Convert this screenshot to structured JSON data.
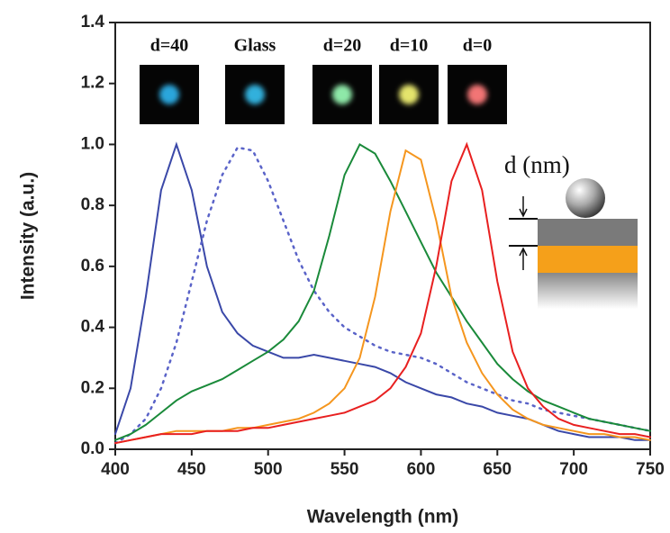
{
  "chart_data": {
    "type": "line",
    "xlabel": "Wavelength (nm)",
    "ylabel": "Intensity (a.u.)",
    "annotation": "d (nm)",
    "xlim": [
      400,
      750
    ],
    "ylim": [
      0,
      1.4
    ],
    "xticks": [
      400,
      450,
      500,
      550,
      600,
      650,
      700,
      750
    ],
    "yticks": [
      {
        "value": 0,
        "label": "0.0"
      },
      0.2,
      0.4,
      0.6,
      0.8,
      {
        "value": 1,
        "label": "1.0"
      },
      1.2,
      1.4
    ],
    "grid": false,
    "x": [
      400,
      410,
      420,
      430,
      440,
      450,
      460,
      470,
      480,
      490,
      500,
      510,
      520,
      530,
      540,
      550,
      560,
      570,
      580,
      590,
      600,
      610,
      620,
      630,
      640,
      650,
      660,
      670,
      680,
      690,
      700,
      710,
      720,
      730,
      740,
      750
    ],
    "series": [
      {
        "name": "d=40",
        "color": "#3a48a8",
        "linestyle": "solid",
        "spot_color": "#2aa6dc",
        "values": [
          0.05,
          0.2,
          0.5,
          0.85,
          1.0,
          0.85,
          0.6,
          0.45,
          0.38,
          0.34,
          0.32,
          0.3,
          0.3,
          0.31,
          0.3,
          0.29,
          0.28,
          0.27,
          0.25,
          0.22,
          0.2,
          0.18,
          0.17,
          0.15,
          0.14,
          0.12,
          0.11,
          0.1,
          0.08,
          0.06,
          0.05,
          0.04,
          0.04,
          0.04,
          0.03,
          0.03
        ]
      },
      {
        "name": "Glass",
        "color": "#5a63c8",
        "linestyle": "dotted",
        "spot_color": "#30b0dc",
        "values": [
          0.02,
          0.05,
          0.1,
          0.2,
          0.35,
          0.55,
          0.75,
          0.9,
          0.99,
          0.98,
          0.88,
          0.75,
          0.62,
          0.52,
          0.45,
          0.4,
          0.37,
          0.34,
          0.32,
          0.31,
          0.3,
          0.28,
          0.25,
          0.22,
          0.2,
          0.18,
          0.16,
          0.15,
          0.13,
          0.12,
          0.11,
          0.1,
          0.09,
          0.08,
          0.07,
          0.06
        ]
      },
      {
        "name": "d=20",
        "color": "#1a8a3a",
        "linestyle": "solid",
        "spot_color": "#8ee8a8",
        "values": [
          0.03,
          0.05,
          0.08,
          0.12,
          0.16,
          0.19,
          0.21,
          0.23,
          0.26,
          0.29,
          0.32,
          0.36,
          0.42,
          0.52,
          0.7,
          0.9,
          1.0,
          0.97,
          0.88,
          0.78,
          0.68,
          0.58,
          0.5,
          0.42,
          0.35,
          0.28,
          0.23,
          0.19,
          0.16,
          0.14,
          0.12,
          0.1,
          0.09,
          0.08,
          0.07,
          0.06
        ]
      },
      {
        "name": "d=10",
        "color": "#f5961e",
        "linestyle": "solid",
        "spot_color": "#e4e46c",
        "values": [
          0.02,
          0.03,
          0.04,
          0.05,
          0.06,
          0.06,
          0.06,
          0.06,
          0.07,
          0.07,
          0.08,
          0.09,
          0.1,
          0.12,
          0.15,
          0.2,
          0.3,
          0.5,
          0.78,
          0.98,
          0.95,
          0.75,
          0.5,
          0.35,
          0.25,
          0.18,
          0.13,
          0.1,
          0.08,
          0.07,
          0.06,
          0.05,
          0.05,
          0.04,
          0.04,
          0.03
        ]
      },
      {
        "name": "d=0",
        "color": "#e82020",
        "linestyle": "solid",
        "spot_color": "#f27474",
        "values": [
          0.02,
          0.03,
          0.04,
          0.05,
          0.05,
          0.05,
          0.06,
          0.06,
          0.06,
          0.07,
          0.07,
          0.08,
          0.09,
          0.1,
          0.11,
          0.12,
          0.14,
          0.16,
          0.2,
          0.27,
          0.38,
          0.6,
          0.88,
          1.0,
          0.85,
          0.55,
          0.32,
          0.2,
          0.14,
          0.1,
          0.08,
          0.07,
          0.06,
          0.05,
          0.05,
          0.04
        ]
      }
    ]
  }
}
